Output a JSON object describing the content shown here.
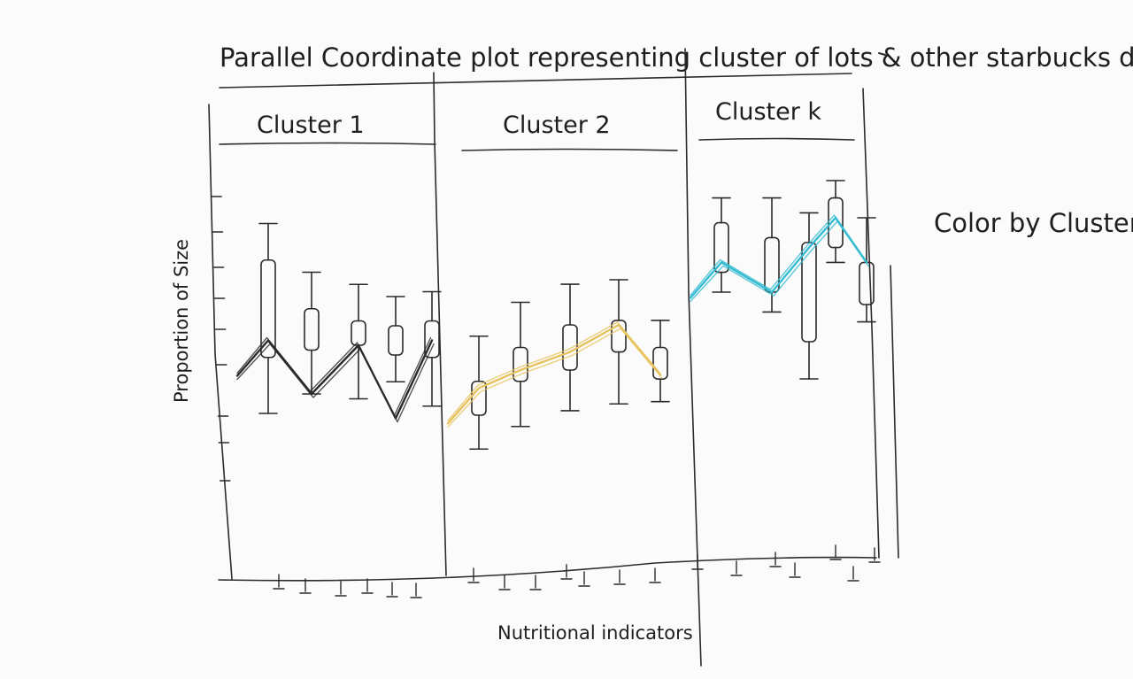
{
  "title": "Parallel Coordinate plot representing cluster of lots & other starbucks drinks",
  "annotation": "Color by Cluster",
  "axes": {
    "ylabel": "Proportion of Size",
    "xlabel": "Nutritional indicators"
  },
  "clusters": [
    {
      "label": "Cluster 1",
      "color": "#2a2a2a",
      "boxes": [
        {
          "whisker_top": 0.9,
          "q3": 0.75,
          "q1": 0.35,
          "whisker_bottom": 0.12,
          "line": 0.42
        },
        {
          "whisker_top": 0.7,
          "q3": 0.55,
          "q1": 0.38,
          "whisker_bottom": 0.2,
          "line": 0.2
        },
        {
          "whisker_top": 0.65,
          "q3": 0.5,
          "q1": 0.4,
          "whisker_bottom": 0.18,
          "line": 0.4
        },
        {
          "whisker_top": 0.6,
          "q3": 0.48,
          "q1": 0.36,
          "whisker_bottom": 0.25,
          "line": 0.1
        },
        {
          "whisker_top": 0.62,
          "q3": 0.5,
          "q1": 0.35,
          "whisker_bottom": 0.15,
          "line": 0.42
        }
      ]
    },
    {
      "label": "Cluster 2",
      "color": "#e7c35f",
      "boxes": [
        {
          "whisker_top": 0.55,
          "q3": 0.35,
          "q1": 0.2,
          "whisker_bottom": 0.05,
          "line": 0.32
        },
        {
          "whisker_top": 0.7,
          "q3": 0.5,
          "q1": 0.35,
          "whisker_bottom": 0.15,
          "line": 0.4
        },
        {
          "whisker_top": 0.78,
          "q3": 0.6,
          "q1": 0.4,
          "whisker_bottom": 0.22,
          "line": 0.48
        },
        {
          "whisker_top": 0.8,
          "q3": 0.62,
          "q1": 0.48,
          "whisker_bottom": 0.25,
          "line": 0.6
        },
        {
          "whisker_top": 0.62,
          "q3": 0.5,
          "q1": 0.36,
          "whisker_bottom": 0.26,
          "line": 0.38
        }
      ]
    },
    {
      "label": "Cluster k",
      "color": "#35bcd2",
      "boxes": [
        {
          "whisker_top": 0.88,
          "q3": 0.78,
          "q1": 0.58,
          "whisker_bottom": 0.5,
          "line": 0.62
        },
        {
          "whisker_top": 0.88,
          "q3": 0.72,
          "q1": 0.5,
          "whisker_bottom": 0.42,
          "line": 0.5
        },
        {
          "whisker_top": 0.82,
          "q3": 0.7,
          "q1": 0.3,
          "whisker_bottom": 0.15,
          "line": 0.68
        },
        {
          "whisker_top": 0.95,
          "q3": 0.88,
          "q1": 0.68,
          "whisker_bottom": 0.62,
          "line": 0.8
        },
        {
          "whisker_top": 0.8,
          "q3": 0.62,
          "q1": 0.45,
          "whisker_bottom": 0.38,
          "line": 0.62
        }
      ]
    }
  ]
}
